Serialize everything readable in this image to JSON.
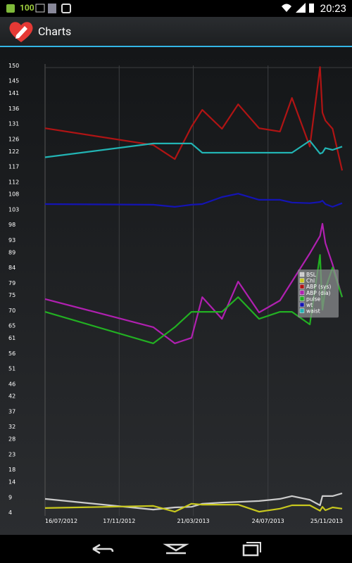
{
  "status_bar": {
    "notification": "100",
    "time": "20:23"
  },
  "app_bar": {
    "title": "Charts"
  },
  "chart_data": {
    "type": "line",
    "x": [
      "2012-07-16",
      "2013-01-13",
      "2013-02-18",
      "2013-03-18",
      "2013-04-05",
      "2013-05-08",
      "2013-06-04",
      "2013-07-09",
      "2013-08-13",
      "2013-09-02",
      "2013-10-02",
      "2013-10-19",
      "2013-10-23",
      "2013-10-28",
      "2013-11-09",
      "2013-11-25"
    ],
    "series": [
      {
        "name": "BSL",
        "color": "#cccccc",
        "values": [
          8.4,
          4.9,
          5.6,
          5.8,
          6.8,
          7.2,
          7.4,
          7.7,
          8.4,
          9.3,
          8.1,
          6.3,
          9.3,
          9.3,
          9.3,
          10.2
        ]
      },
      {
        "name": "Chl",
        "color": "#c8c81e",
        "values": [
          5.4,
          6.1,
          4.2,
          6.8,
          6.5,
          6.5,
          6.5,
          4.2,
          5.2,
          6.3,
          6.3,
          4.5,
          5.8,
          4.7,
          5.6,
          5.2
        ]
      },
      {
        "name": "ABP (sys)",
        "color": "#b01414",
        "values": [
          129.5,
          124,
          119.4,
          130,
          135.5,
          129.3,
          137.3,
          129.5,
          128.4,
          139.4,
          123.5,
          149.5,
          134.6,
          132,
          129.3,
          115.7
        ]
      },
      {
        "name": "ABP (dia)",
        "color": "#b020b0",
        "values": [
          73.7,
          64.5,
          59.2,
          61,
          74.3,
          67.2,
          79.4,
          69.3,
          73.2,
          79.4,
          88.6,
          94.3,
          98.3,
          92,
          85,
          74.3
        ]
      },
      {
        "name": "pulse",
        "color": "#22b022",
        "values": [
          69.5,
          59.2,
          64.5,
          69.5,
          69.5,
          69.5,
          74.3,
          67.2,
          69.5,
          69.5,
          65.4,
          88.1,
          70.2,
          77,
          84,
          74.3
        ]
      },
      {
        "name": "wt",
        "color": "#1414b4",
        "values": [
          104.7,
          104.5,
          103.8,
          104.5,
          104.7,
          107,
          108.1,
          106.1,
          106.1,
          105.2,
          105,
          105.4,
          105.8,
          104.7,
          103.8,
          105
        ]
      },
      {
        "name": "waist",
        "color": "#22b4b4",
        "values": [
          120,
          124.5,
          124.5,
          124.5,
          121.5,
          121.5,
          121.5,
          121.5,
          121.5,
          121.5,
          125.4,
          121.2,
          121.5,
          123,
          122.4,
          123.5
        ]
      }
    ],
    "xlim": [
      "2012-07-16",
      "2013-11-25"
    ],
    "xticks": [
      {
        "value": "2012-07-16",
        "label": "16/07/2012"
      },
      {
        "value": "2012-11-17",
        "label": "17/11/2012"
      },
      {
        "value": "2013-03-21",
        "label": "21/03/2013"
      },
      {
        "value": "2013-07-24",
        "label": "24/07/2013"
      },
      {
        "value": "2013-11-25",
        "label": "25/11/2013"
      }
    ],
    "ylim": [
      4,
      150
    ],
    "yticks": [
      4,
      9,
      14,
      18,
      23,
      28,
      32,
      37,
      42,
      46,
      51,
      56,
      61,
      65,
      70,
      75,
      79,
      84,
      89,
      93,
      98,
      103,
      108,
      112,
      117,
      122,
      126,
      131,
      136,
      141,
      145,
      150
    ],
    "grid": "x",
    "legend": "right"
  }
}
